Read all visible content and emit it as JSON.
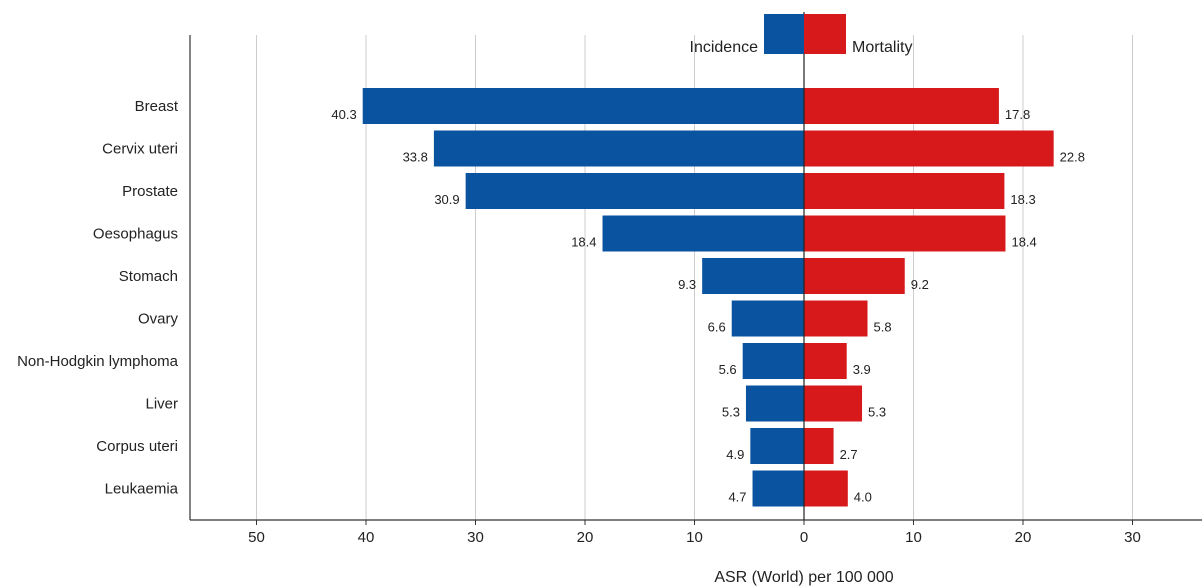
{
  "chart_data": {
    "type": "bar",
    "orientation": "horizontal-diverging",
    "categories": [
      "Breast",
      "Cervix uteri",
      "Prostate",
      "Oesophagus",
      "Stomach",
      "Ovary",
      "Non-Hodgkin lymphoma",
      "Liver",
      "Corpus uteri",
      "Leukaemia"
    ],
    "series": [
      {
        "name": "Incidence",
        "values": [
          40.3,
          33.8,
          30.9,
          18.4,
          9.3,
          6.6,
          5.6,
          5.3,
          4.9,
          4.7
        ],
        "value_labels": [
          "40.3",
          "33.8",
          "30.9",
          "18.4",
          "9.3",
          "6.6",
          "5.6",
          "5.3",
          "4.9",
          "4.7"
        ],
        "color": "#0a53a0",
        "side": "left"
      },
      {
        "name": "Mortality",
        "values": [
          17.8,
          22.8,
          18.3,
          18.4,
          9.2,
          5.8,
          3.9,
          5.3,
          2.7,
          4.0
        ],
        "value_labels": [
          "17.8",
          "22.8",
          "18.3",
          "18.4",
          "9.2",
          "5.8",
          "3.9",
          "5.3",
          "2.7",
          "4.0"
        ],
        "color": "#d7191c",
        "side": "right"
      }
    ],
    "xlabel": "ASR (World) per 100 000",
    "ylabel": "",
    "xlim": [
      -50,
      30
    ],
    "ticks": [
      -50,
      -40,
      -30,
      -20,
      -10,
      0,
      10,
      20,
      30
    ],
    "tick_labels": [
      "50",
      "40",
      "30",
      "20",
      "10",
      "0",
      "10",
      "20",
      "30"
    ],
    "grid": true,
    "legend": "top-center"
  }
}
